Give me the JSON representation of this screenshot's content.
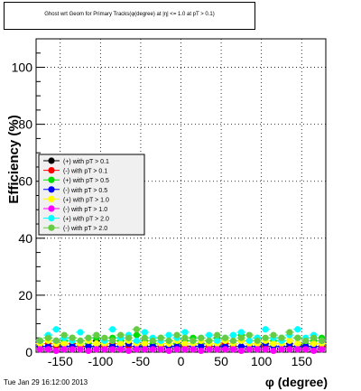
{
  "title": "Ghost wrt Geom for Primary Tracks(φ(degree) at |η| <= 1.0 at pT > 0.1)",
  "footer": "Tue Jan 29 16:12:00 2013",
  "chart_data": {
    "type": "scatter",
    "title": "Ghost wrt Geom for Primary Tracks(φ(degree) at |η| <= 1.0 at pT > 0.1)",
    "xlabel": "φ (degree)",
    "ylabel": "Efficiency (%)",
    "xlim": [
      -180,
      180
    ],
    "ylim": [
      0,
      110
    ],
    "xticks": [
      -150,
      -100,
      -50,
      0,
      50,
      100,
      150
    ],
    "yticks": [
      0,
      20,
      40,
      60,
      80,
      100
    ],
    "grid": true,
    "legend_position": "left-middle",
    "series": [
      {
        "name": "(+) with pT > 0.1",
        "color": "#000000",
        "x": [
          -175,
          -165,
          -155,
          -145,
          -135,
          -125,
          -115,
          -105,
          -95,
          -85,
          -75,
          -65,
          -55,
          -45,
          -35,
          -25,
          -15,
          -5,
          5,
          15,
          25,
          35,
          45,
          55,
          65,
          75,
          85,
          95,
          105,
          115,
          125,
          135,
          145,
          155,
          165,
          175
        ],
        "values": [
          3,
          2,
          4,
          3,
          2,
          3,
          2,
          4,
          3,
          2,
          3,
          4,
          2,
          3,
          2,
          3,
          2,
          3,
          2,
          4,
          3,
          2,
          3,
          2,
          3,
          4,
          2,
          3,
          2,
          3,
          4,
          2,
          3,
          2,
          3,
          2
        ]
      },
      {
        "name": "(-) with pT > 0.1",
        "color": "#ff0000",
        "x": [
          -175,
          -165,
          -155,
          -145,
          -135,
          -125,
          -115,
          -105,
          -95,
          -85,
          -75,
          -65,
          -55,
          -45,
          -35,
          -25,
          -15,
          -5,
          5,
          15,
          25,
          35,
          45,
          55,
          65,
          75,
          85,
          95,
          105,
          115,
          125,
          135,
          145,
          155,
          165,
          175
        ],
        "values": [
          2,
          3,
          2,
          2,
          3,
          2,
          3,
          2,
          2,
          3,
          2,
          2,
          3,
          2,
          3,
          2,
          2,
          3,
          2,
          2,
          3,
          2,
          2,
          3,
          2,
          2,
          3,
          2,
          2,
          3,
          2,
          3,
          2,
          2,
          3,
          2
        ]
      },
      {
        "name": "(+) with pT > 0.5",
        "color": "#00dd00",
        "x": [
          -175,
          -165,
          -155,
          -145,
          -135,
          -125,
          -115,
          -105,
          -95,
          -85,
          -75,
          -65,
          -55,
          -45,
          -35,
          -25,
          -15,
          -5,
          5,
          15,
          25,
          35,
          45,
          55,
          65,
          75,
          85,
          95,
          105,
          115,
          125,
          135,
          145,
          155,
          165,
          175
        ],
        "values": [
          4,
          5,
          3,
          4,
          5,
          4,
          3,
          5,
          4,
          5,
          4,
          3,
          6,
          4,
          3,
          5,
          4,
          3,
          4,
          5,
          3,
          4,
          5,
          4,
          3,
          6,
          4,
          5,
          3,
          4,
          5,
          4,
          5,
          3,
          4,
          5
        ]
      },
      {
        "name": "(-) with pT > 0.5",
        "color": "#0000ff",
        "x": [
          -175,
          -165,
          -155,
          -145,
          -135,
          -125,
          -115,
          -105,
          -95,
          -85,
          -75,
          -65,
          -55,
          -45,
          -35,
          -25,
          -15,
          -5,
          5,
          15,
          25,
          35,
          45,
          55,
          65,
          75,
          85,
          95,
          105,
          115,
          125,
          135,
          145,
          155,
          165,
          175
        ],
        "values": [
          2,
          2,
          3,
          2,
          2,
          3,
          2,
          2,
          3,
          2,
          2,
          3,
          2,
          2,
          2,
          3,
          2,
          2,
          3,
          2,
          2,
          3,
          2,
          2,
          3,
          2,
          2,
          2,
          3,
          2,
          2,
          3,
          2,
          2,
          2,
          3
        ]
      },
      {
        "name": "(+) with pT > 1.0",
        "color": "#ffff00",
        "x": [
          -175,
          -165,
          -155,
          -145,
          -135,
          -125,
          -115,
          -105,
          -95,
          -85,
          -75,
          -65,
          -55,
          -45,
          -35,
          -25,
          -15,
          -5,
          5,
          15,
          25,
          35,
          45,
          55,
          65,
          75,
          85,
          95,
          105,
          115,
          125,
          135,
          145,
          155,
          165,
          175
        ],
        "values": [
          3,
          4,
          3,
          3,
          4,
          3,
          4,
          3,
          3,
          4,
          3,
          4,
          3,
          3,
          4,
          3,
          3,
          4,
          3,
          3,
          4,
          3,
          3,
          4,
          3,
          4,
          3,
          3,
          4,
          3,
          3,
          4,
          3,
          4,
          3,
          3
        ]
      },
      {
        "name": "(-) with pT > 1.0",
        "color": "#ff00ff",
        "x": [
          -175,
          -165,
          -155,
          -145,
          -135,
          -125,
          -115,
          -105,
          -95,
          -85,
          -75,
          -65,
          -55,
          -45,
          -35,
          -25,
          -15,
          -5,
          5,
          15,
          25,
          35,
          45,
          55,
          65,
          75,
          85,
          95,
          105,
          115,
          125,
          135,
          145,
          155,
          165,
          175
        ],
        "values": [
          1,
          1,
          0.5,
          1,
          1,
          1,
          0.5,
          1,
          1,
          1,
          1,
          0.5,
          1,
          1,
          1,
          1,
          0.5,
          1,
          1,
          1,
          0.5,
          1,
          1,
          1,
          1,
          0.5,
          1,
          1,
          1,
          0.5,
          1,
          1,
          1,
          1,
          0.5,
          1
        ]
      },
      {
        "name": "(+) with pT > 2.0",
        "color": "#00ffff",
        "x": [
          -175,
          -165,
          -155,
          -145,
          -135,
          -125,
          -115,
          -105,
          -95,
          -85,
          -75,
          -65,
          -55,
          -45,
          -35,
          -25,
          -15,
          -5,
          5,
          15,
          25,
          35,
          45,
          55,
          65,
          75,
          85,
          95,
          105,
          115,
          125,
          135,
          145,
          155,
          165,
          175
        ],
        "values": [
          4,
          6,
          8,
          5,
          4,
          7,
          5,
          6,
          4,
          8,
          5,
          6,
          4,
          7,
          5,
          4,
          6,
          5,
          7,
          4,
          5,
          6,
          4,
          5,
          6,
          7,
          4,
          5,
          8,
          5,
          4,
          6,
          8,
          5,
          6,
          4
        ]
      },
      {
        "name": "(-) with pT > 2.0",
        "color": "#66cc44",
        "x": [
          -175,
          -165,
          -155,
          -145,
          -135,
          -125,
          -115,
          -105,
          -95,
          -85,
          -75,
          -65,
          -55,
          -45,
          -35,
          -25,
          -15,
          -5,
          5,
          15,
          25,
          35,
          45,
          55,
          65,
          75,
          85,
          95,
          105,
          115,
          125,
          135,
          145,
          155,
          165,
          175
        ],
        "values": [
          4,
          5,
          4,
          6,
          5,
          4,
          5,
          6,
          5,
          4,
          6,
          5,
          8,
          5,
          4,
          5,
          4,
          6,
          5,
          4,
          5,
          4,
          6,
          5,
          4,
          5,
          6,
          4,
          5,
          6,
          5,
          7,
          5,
          4,
          5,
          4
        ]
      }
    ]
  }
}
